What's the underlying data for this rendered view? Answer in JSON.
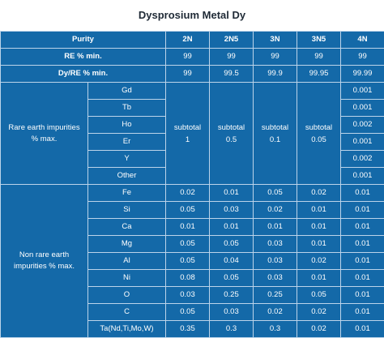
{
  "title": "Dysprosium Metal Dy",
  "header": {
    "purity_label": "Purity",
    "grades": [
      "2N",
      "2N5",
      "3N",
      "3N5",
      "4N"
    ]
  },
  "re_min": {
    "label": "RE % min.",
    "values": [
      "99",
      "99",
      "99",
      "99",
      "99"
    ]
  },
  "dy_re": {
    "label": "Dy/RE % min.",
    "values": [
      "99",
      "99.5",
      "99.9",
      "99.95",
      "99.99"
    ]
  },
  "rare_earth": {
    "label_line1": "Rare earth impurities",
    "label_line2": "% max.",
    "elements": [
      "Gd",
      "Tb",
      "Ho",
      "Er",
      "Y",
      "Other"
    ],
    "subtotals": [
      {
        "word": "subtotal",
        "value": "1"
      },
      {
        "word": "subtotal",
        "value": "0.5"
      },
      {
        "word": "subtotal",
        "value": "0.1"
      },
      {
        "word": "subtotal",
        "value": "0.05"
      }
    ],
    "grade_4n": [
      "0.001",
      "0.001",
      "0.002",
      "0.001",
      "0.002",
      "0.001"
    ]
  },
  "non_rare_earth": {
    "label_line1": "Non rare earth",
    "label_line2": "impurities % max.",
    "rows": [
      {
        "element": "Fe",
        "values": [
          "0.02",
          "0.01",
          "0.05",
          "0.02",
          "0.01"
        ]
      },
      {
        "element": "Si",
        "values": [
          "0.05",
          "0.03",
          "0.02",
          "0.01",
          "0.01"
        ]
      },
      {
        "element": "Ca",
        "values": [
          "0.01",
          "0.01",
          "0.01",
          "0.01",
          "0.01"
        ]
      },
      {
        "element": "Mg",
        "values": [
          "0.05",
          "0.05",
          "0.03",
          "0.01",
          "0.01"
        ]
      },
      {
        "element": "Al",
        "values": [
          "0.05",
          "0.04",
          "0.03",
          "0.02",
          "0.01"
        ]
      },
      {
        "element": "Ni",
        "values": [
          "0.08",
          "0.05",
          "0.03",
          "0.01",
          "0.01"
        ]
      },
      {
        "element": "O",
        "values": [
          "0.03",
          "0.25",
          "0.25",
          "0.05",
          "0.01"
        ]
      },
      {
        "element": "C",
        "values": [
          "0.05",
          "0.03",
          "0.02",
          "0.02",
          "0.01"
        ]
      },
      {
        "element": "Ta(Nd,Ti,Mo,W)",
        "values": [
          "0.35",
          "0.3",
          "0.3",
          "0.02",
          "0.01"
        ]
      }
    ]
  }
}
